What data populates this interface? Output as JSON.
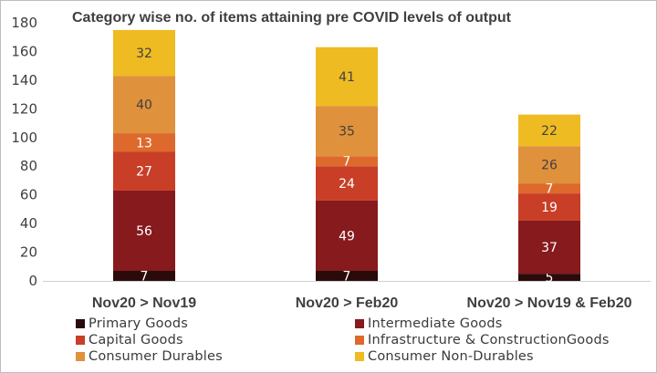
{
  "chart_data": {
    "type": "bar",
    "stacked": true,
    "title": "Category wise no. of items attaining pre COVID levels of output",
    "categories": [
      "Nov20 > Nov19",
      "Nov20 > Feb20",
      "Nov20 > Nov19 & Feb20"
    ],
    "ylim": [
      0,
      180
    ],
    "yticks": [
      0,
      20,
      40,
      60,
      80,
      100,
      120,
      140,
      160,
      180
    ],
    "grid": false,
    "legend_placement": "bottom",
    "series": [
      {
        "name": "Primary Goods",
        "color": "#2b0a0a",
        "values": [
          7,
          7,
          5
        ]
      },
      {
        "name": "Intermediate Goods",
        "color": "#861a1d",
        "values": [
          56,
          49,
          37
        ]
      },
      {
        "name": "Capital Goods",
        "color": "#c83e27",
        "values": [
          27,
          24,
          19
        ]
      },
      {
        "name": "Infrastructure & ConstructionGoods",
        "color": "#dd6a2c",
        "values": [
          13,
          7,
          7
        ]
      },
      {
        "name": "Consumer Durables",
        "color": "#e0913c",
        "values": [
          40,
          35,
          26
        ]
      },
      {
        "name": "Consumer Non-Durables",
        "color": "#efbb22",
        "values": [
          32,
          41,
          22
        ]
      }
    ]
  }
}
